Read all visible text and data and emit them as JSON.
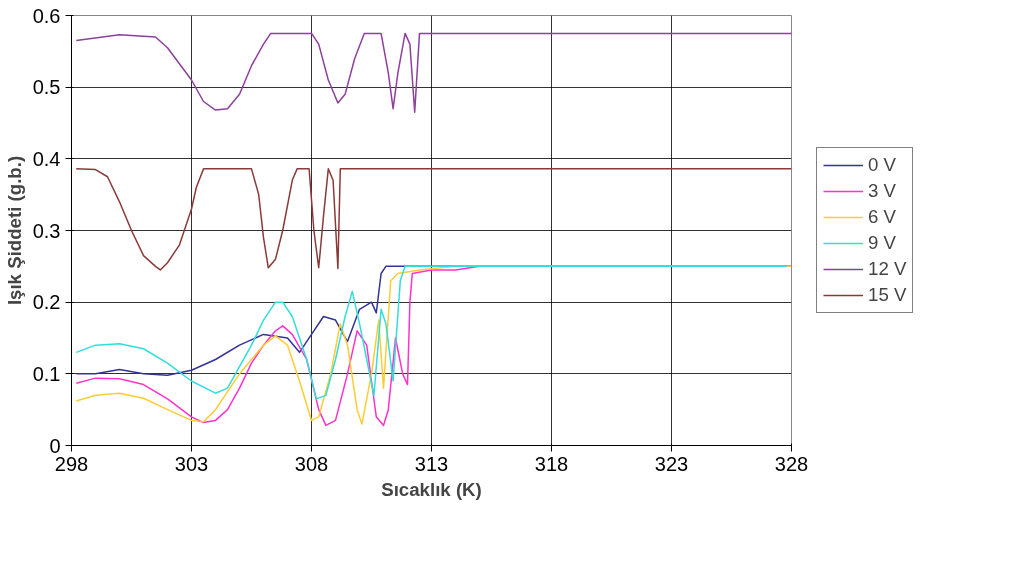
{
  "chart_data": {
    "type": "line",
    "xlabel": "Sıcaklık (K)",
    "ylabel": "Işık Şiddeti (g.b.)",
    "xlim": [
      298,
      328
    ],
    "xticks": [
      298,
      303,
      308,
      313,
      318,
      323,
      328
    ],
    "ylim": [
      0,
      0.6
    ],
    "yticks": [
      0,
      0.1,
      0.2,
      0.3,
      0.4,
      0.5,
      0.6
    ],
    "grid": true,
    "legend": "right",
    "marker": "none",
    "line_style": "solid",
    "series": [
      {
        "name": "0 V",
        "color": "#333399",
        "x": [
          298.2,
          299,
          300,
          301,
          302,
          303,
          304,
          305,
          306,
          307,
          307.5,
          308,
          308.5,
          309,
          309.5,
          310,
          310.5,
          310.7,
          310.9,
          311.1,
          328
        ],
        "values": [
          0.1,
          0.1,
          0.106,
          0.1,
          0.098,
          0.105,
          0.12,
          0.14,
          0.155,
          0.15,
          0.13,
          0.155,
          0.18,
          0.175,
          0.145,
          0.19,
          0.2,
          0.185,
          0.24,
          0.25,
          0.25
        ]
      },
      {
        "name": "3 V",
        "color": "#ff33cc",
        "x": [
          298.2,
          299,
          300,
          301,
          302,
          303,
          303.5,
          304,
          304.5,
          305,
          305.5,
          306,
          306.5,
          306.8,
          307.2,
          307.8,
          308.3,
          308.6,
          309,
          309.5,
          309.9,
          310.3,
          310.7,
          311,
          311.2,
          311.5,
          311.8,
          312,
          312.1,
          312.2,
          313,
          314,
          315,
          328
        ],
        "values": [
          0.087,
          0.094,
          0.093,
          0.085,
          0.065,
          0.04,
          0.032,
          0.035,
          0.05,
          0.08,
          0.115,
          0.14,
          0.16,
          0.167,
          0.155,
          0.12,
          0.05,
          0.028,
          0.035,
          0.1,
          0.16,
          0.14,
          0.04,
          0.028,
          0.05,
          0.15,
          0.1,
          0.085,
          0.2,
          0.24,
          0.245,
          0.245,
          0.25,
          0.25
        ]
      },
      {
        "name": "6 V",
        "color": "#ffcc33",
        "x": [
          298.2,
          299,
          300,
          301,
          302,
          303,
          303.5,
          304,
          305,
          306,
          306.5,
          307,
          307.5,
          308,
          308.3,
          308.8,
          309.2,
          309.5,
          309.9,
          310.1,
          310.5,
          310.8,
          311,
          311.3,
          311.6,
          312.5,
          314,
          328
        ],
        "values": [
          0.062,
          0.07,
          0.073,
          0.066,
          0.05,
          0.035,
          0.033,
          0.05,
          0.1,
          0.14,
          0.153,
          0.14,
          0.09,
          0.035,
          0.04,
          0.1,
          0.17,
          0.14,
          0.05,
          0.03,
          0.1,
          0.175,
          0.08,
          0.23,
          0.24,
          0.245,
          0.25,
          0.25
        ]
      },
      {
        "name": "9 V",
        "color": "#33dddd",
        "x": [
          298.2,
          299,
          300,
          301,
          302,
          303,
          304,
          304.5,
          305,
          305.5,
          306,
          306.5,
          306.8,
          307.2,
          307.8,
          308.2,
          308.6,
          309,
          309.4,
          309.7,
          310,
          310.3,
          310.6,
          310.9,
          311.1,
          311.4,
          311.7,
          311.9,
          327.8
        ],
        "values": [
          0.13,
          0.14,
          0.142,
          0.135,
          0.115,
          0.09,
          0.073,
          0.08,
          0.11,
          0.14,
          0.175,
          0.2,
          0.2,
          0.18,
          0.12,
          0.065,
          0.07,
          0.12,
          0.18,
          0.215,
          0.17,
          0.12,
          0.07,
          0.19,
          0.17,
          0.09,
          0.23,
          0.25,
          0.25
        ]
      },
      {
        "name": "12 V",
        "color": "#8e3f9e",
        "x": [
          298.2,
          300,
          301.5,
          302,
          303,
          303.5,
          304,
          304.5,
          305,
          305.5,
          306,
          306.3,
          308,
          308.3,
          308.7,
          309.1,
          309.4,
          309.8,
          310.2,
          310.9,
          311.2,
          311.4,
          311.6,
          311.9,
          312.1,
          312.3,
          312.5,
          328
        ],
        "values": [
          0.565,
          0.573,
          0.57,
          0.555,
          0.51,
          0.48,
          0.468,
          0.47,
          0.49,
          0.53,
          0.56,
          0.575,
          0.575,
          0.56,
          0.51,
          0.478,
          0.49,
          0.54,
          0.575,
          0.575,
          0.52,
          0.47,
          0.52,
          0.575,
          0.56,
          0.465,
          0.575,
          0.575
        ]
      },
      {
        "name": "15 V",
        "color": "#8b3a3a",
        "x": [
          298.2,
          299,
          299.5,
          300,
          300.5,
          301,
          301.5,
          301.7,
          302,
          302.5,
          303,
          303.2,
          303.5,
          305.5,
          305.8,
          306,
          306.2,
          306.5,
          306.8,
          307.2,
          307.4,
          307.9,
          308.1,
          308.3,
          308.5,
          308.7,
          308.9,
          309.1,
          309.2,
          328
        ],
        "values": [
          0.386,
          0.385,
          0.375,
          0.34,
          0.3,
          0.265,
          0.25,
          0.245,
          0.255,
          0.28,
          0.33,
          0.36,
          0.386,
          0.386,
          0.35,
          0.29,
          0.248,
          0.26,
          0.3,
          0.37,
          0.386,
          0.386,
          0.3,
          0.248,
          0.32,
          0.386,
          0.37,
          0.247,
          0.386,
          0.386
        ]
      }
    ]
  }
}
